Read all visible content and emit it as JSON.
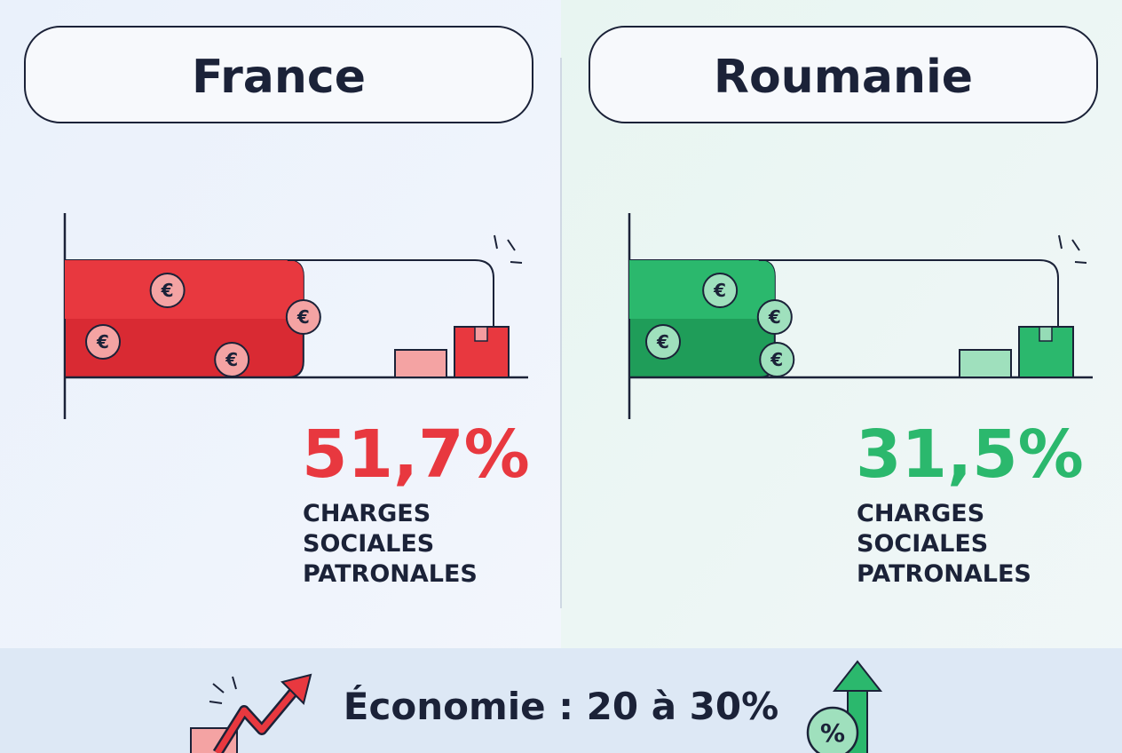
{
  "panels": [
    {
      "title": "France",
      "value": 51.7,
      "value_label": "51,7%",
      "label_lines": [
        "CHARGES",
        "SOCIALES",
        "PATRONALES"
      ],
      "color": "#e8383f",
      "color_dark": "#d92a33",
      "color_light": "#f4a3a3"
    },
    {
      "title": "Roumanie",
      "value": 31.5,
      "value_label": "31,5%",
      "label_lines": [
        "CHARGES",
        "SOCIALES",
        "PATRONALES"
      ],
      "color": "#2bb86d",
      "color_dark": "#1f9d59",
      "color_light": "#9fe0bd"
    }
  ],
  "coin_symbol": "€",
  "footer": {
    "text": "Économie : 20 à 30%",
    "icon_symbol": "%"
  }
}
